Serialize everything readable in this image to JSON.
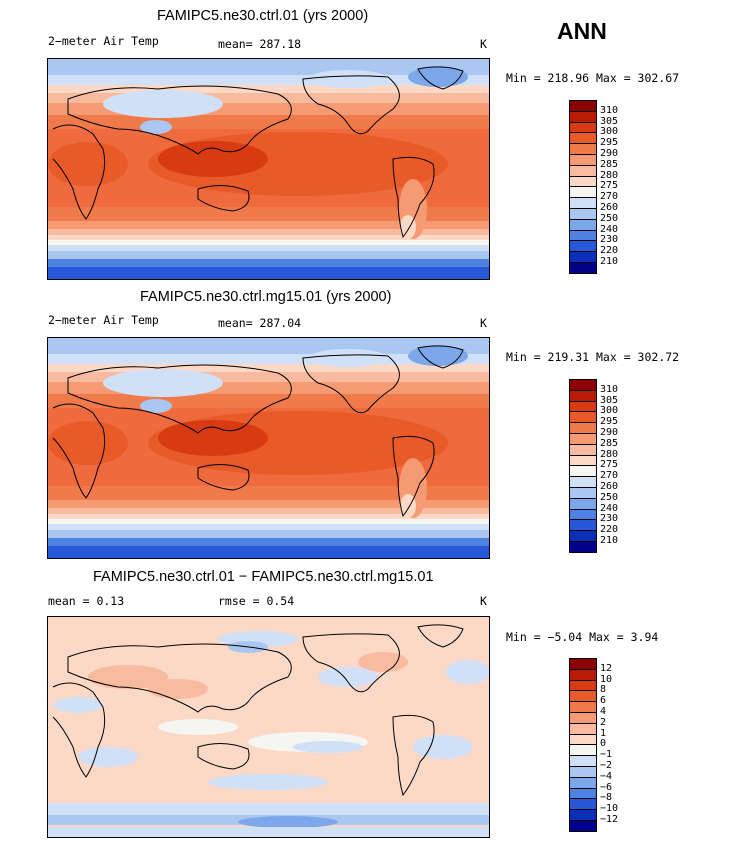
{
  "season": "ANN",
  "panels": [
    {
      "title": "FAMIPC5.ne30.ctrl.01 (yrs 2000)",
      "variable": "2−meter Air Temp",
      "mean_text": "mean= 287.18",
      "units": "K",
      "minmax_text": "Min = 218.96 Max = 302.67",
      "colorbar": {
        "labels": [
          "310",
          "305",
          "300",
          "295",
          "290",
          "285",
          "280",
          "275",
          "270",
          "260",
          "250",
          "240",
          "230",
          "220",
          "210"
        ],
        "colors": [
          "#8b0000",
          "#b81b06",
          "#d83a12",
          "#e85a28",
          "#f07a4a",
          "#f59a72",
          "#f9bb9f",
          "#fcd8c6",
          "#f5f5f2",
          "#cfe0f7",
          "#a9c7f1",
          "#7ca7ea",
          "#4e82e2",
          "#2758d7",
          "#0c2fb8",
          "#00008b"
        ]
      },
      "chart_data": {
        "type": "heatmap",
        "field": "2-meter Air Temp",
        "units": "K",
        "mean": 287.18,
        "min": 218.96,
        "max": 302.67,
        "levels": [
          210,
          220,
          230,
          240,
          250,
          260,
          270,
          275,
          280,
          285,
          290,
          295,
          300,
          305,
          310
        ]
      }
    },
    {
      "title": "FAMIPC5.ne30.ctrl.mg15.01 (yrs 2000)",
      "variable": "2−meter Air Temp",
      "mean_text": "mean= 287.04",
      "units": "K",
      "minmax_text": "Min = 219.31 Max = 302.72",
      "colorbar": {
        "labels": [
          "310",
          "305",
          "300",
          "295",
          "290",
          "285",
          "280",
          "275",
          "270",
          "260",
          "250",
          "240",
          "230",
          "220",
          "210"
        ],
        "colors": [
          "#8b0000",
          "#b81b06",
          "#d83a12",
          "#e85a28",
          "#f07a4a",
          "#f59a72",
          "#f9bb9f",
          "#fcd8c6",
          "#f5f5f2",
          "#cfe0f7",
          "#a9c7f1",
          "#7ca7ea",
          "#4e82e2",
          "#2758d7",
          "#0c2fb8",
          "#00008b"
        ]
      },
      "chart_data": {
        "type": "heatmap",
        "field": "2-meter Air Temp",
        "units": "K",
        "mean": 287.04,
        "min": 219.31,
        "max": 302.72,
        "levels": [
          210,
          220,
          230,
          240,
          250,
          260,
          270,
          275,
          280,
          285,
          290,
          295,
          300,
          305,
          310
        ]
      }
    },
    {
      "title": "FAMIPC5.ne30.ctrl.01 − FAMIPC5.ne30.ctrl.mg15.01",
      "mean_text": "mean =    0.13",
      "rmse_text": "rmse =    0.54",
      "units": "K",
      "minmax_text": "Min =  −5.04 Max =    3.94",
      "colorbar": {
        "labels": [
          "12",
          "10",
          "8",
          "6",
          "4",
          "2",
          "1",
          "0",
          "−1",
          "−2",
          "−4",
          "−6",
          "−8",
          "−10",
          "−12"
        ],
        "colors": [
          "#8b0000",
          "#b81b06",
          "#d83a12",
          "#e85a28",
          "#f07a4a",
          "#f59a72",
          "#f9bb9f",
          "#fcd8c6",
          "#f5f5f2",
          "#cfe0f7",
          "#a9c7f1",
          "#7ca7ea",
          "#4e82e2",
          "#2758d7",
          "#0c2fb8",
          "#00008b"
        ]
      },
      "chart_data": {
        "type": "heatmap",
        "field": "difference 2-meter Air Temp",
        "units": "K",
        "mean": 0.13,
        "rmse": 0.54,
        "min": -5.04,
        "max": 3.94,
        "levels": [
          -12,
          -10,
          -8,
          -6,
          -4,
          -2,
          -1,
          0,
          1,
          2,
          4,
          6,
          8,
          10,
          12
        ]
      }
    }
  ]
}
